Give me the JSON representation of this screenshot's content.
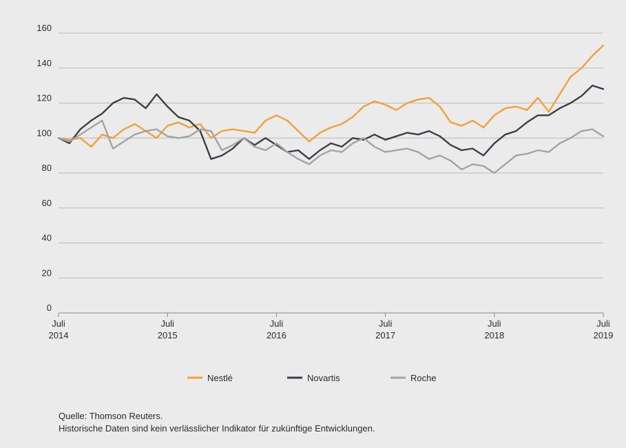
{
  "chart_data": {
    "type": "line",
    "title": "",
    "xlabel": "",
    "ylabel": "",
    "ylim": [
      0,
      160
    ],
    "yticks": [
      0,
      20,
      40,
      60,
      80,
      100,
      120,
      140,
      160
    ],
    "xlim": [
      2014.5,
      2019.5
    ],
    "grid": true,
    "legend_position": "bottom-center",
    "x_ticks": [
      {
        "x": 2014.5,
        "line1": "Juli",
        "line2": "2014"
      },
      {
        "x": 2015.5,
        "line1": "Juli",
        "line2": "2015"
      },
      {
        "x": 2016.5,
        "line1": "Juli",
        "line2": "2016"
      },
      {
        "x": 2017.5,
        "line1": "Juli",
        "line2": "2017"
      },
      {
        "x": 2018.5,
        "line1": "Juli",
        "line2": "2018"
      },
      {
        "x": 2019.5,
        "line1": "Juli",
        "line2": "2019"
      }
    ],
    "x": [
      2014.5,
      2014.6,
      2014.7,
      2014.8,
      2014.9,
      2015.0,
      2015.1,
      2015.2,
      2015.3,
      2015.4,
      2015.5,
      2015.6,
      2015.7,
      2015.8,
      2015.9,
      2016.0,
      2016.1,
      2016.2,
      2016.3,
      2016.4,
      2016.5,
      2016.6,
      2016.7,
      2016.8,
      2016.9,
      2017.0,
      2017.1,
      2017.2,
      2017.3,
      2017.4,
      2017.5,
      2017.6,
      2017.7,
      2017.8,
      2017.9,
      2018.0,
      2018.1,
      2018.2,
      2018.3,
      2018.4,
      2018.5,
      2018.6,
      2018.7,
      2018.8,
      2018.9,
      2019.0,
      2019.1,
      2019.2,
      2019.3,
      2019.4,
      2019.5
    ],
    "series": [
      {
        "name": "Nestlé",
        "color": "#f5a131",
        "values": [
          100,
          99,
          100,
          95,
          102,
          100,
          105,
          108,
          104,
          100,
          107,
          109,
          106,
          108,
          100,
          104,
          105,
          104,
          103,
          110,
          113,
          110,
          104,
          98,
          103,
          106,
          108,
          112,
          118,
          121,
          119,
          116,
          120,
          122,
          123,
          118,
          109,
          107,
          110,
          106,
          113,
          117,
          118,
          116,
          123,
          115,
          125,
          135,
          140,
          147,
          153
        ]
      },
      {
        "name": "Novartis",
        "color": "#3a3f47",
        "values": [
          100,
          97,
          105,
          110,
          114,
          120,
          123,
          122,
          117,
          125,
          118,
          112,
          110,
          104,
          88,
          90,
          94,
          100,
          96,
          100,
          96,
          92,
          93,
          88,
          93,
          97,
          95,
          100,
          99,
          102,
          99,
          101,
          103,
          102,
          104,
          101,
          96,
          93,
          94,
          90,
          97,
          102,
          104,
          109,
          113,
          113,
          117,
          120,
          124,
          130,
          128
        ]
      },
      {
        "name": "Roche",
        "color": "#a3a3a3",
        "values": [
          100,
          98,
          102,
          106,
          110,
          94,
          98,
          102,
          104,
          105,
          101,
          100,
          101,
          105,
          104,
          93,
          96,
          100,
          95,
          93,
          97,
          92,
          88,
          85,
          90,
          93,
          92,
          97,
          100,
          95,
          92,
          93,
          94,
          92,
          88,
          90,
          87,
          82,
          85,
          84,
          80,
          85,
          90,
          91,
          93,
          92,
          97,
          100,
          104,
          105,
          101
        ]
      }
    ]
  },
  "footnote": {
    "line1": "Quelle: Thomson Reuters.",
    "line2": "Historische Daten sind kein verlässlicher Indikator für zukünftige Entwicklungen."
  }
}
